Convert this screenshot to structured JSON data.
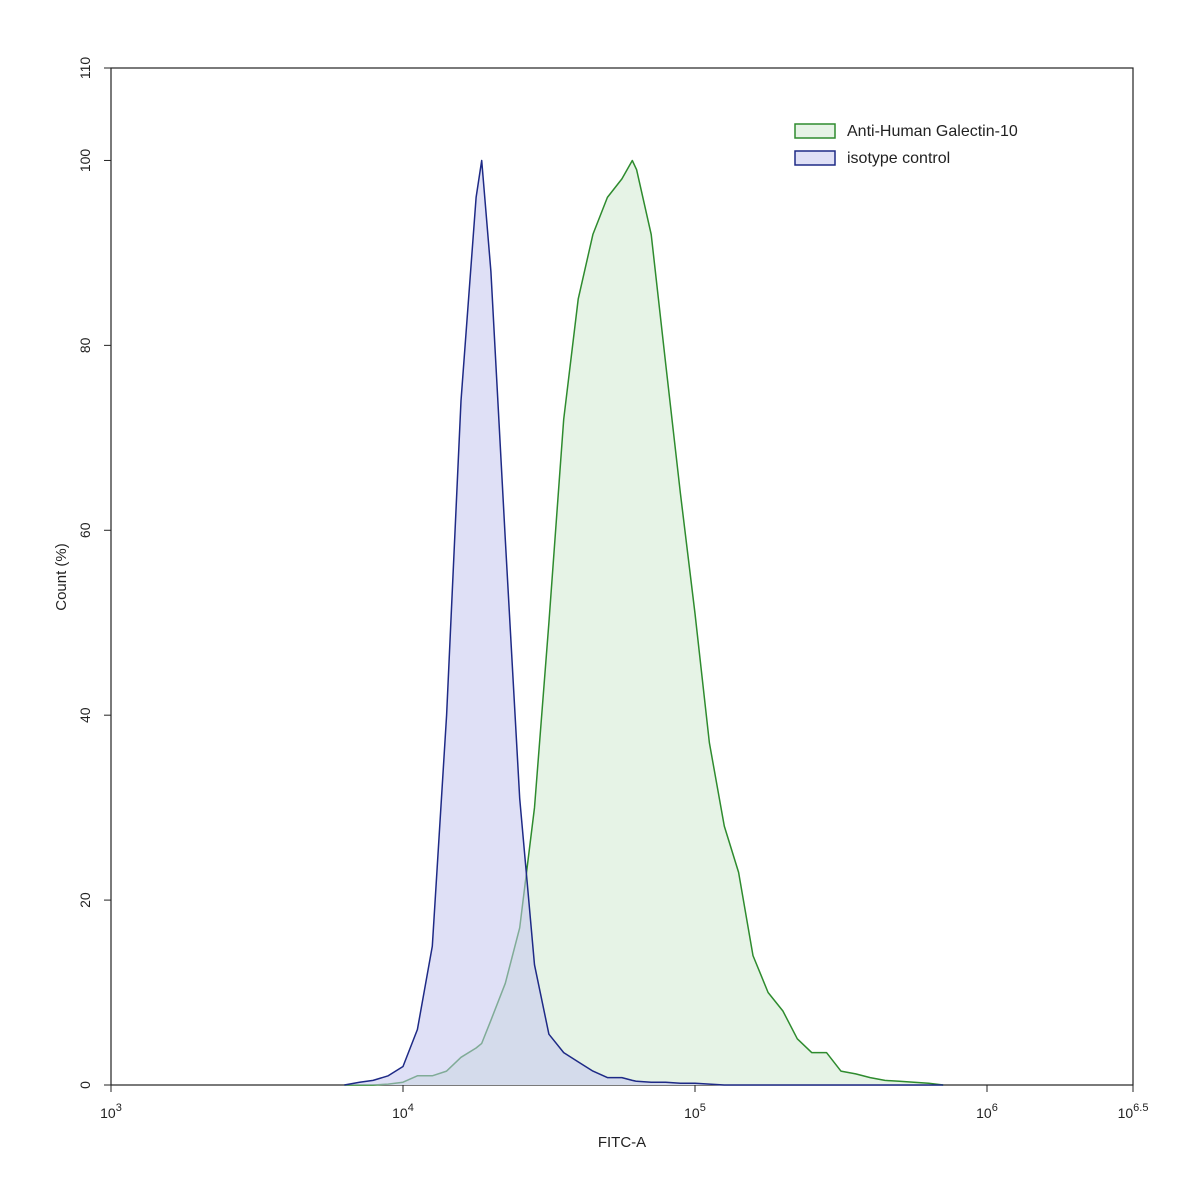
{
  "chart_data": {
    "type": "area",
    "x_label": "FITC-A",
    "y_label": "Count (%)",
    "x_scale": "log",
    "legend": "upper right",
    "xlim": [
      1000,
      3162278
    ],
    "ylim": [
      0,
      110
    ],
    "xticks": [
      {
        "value": 1000,
        "label": "10",
        "exponent": "3"
      },
      {
        "value": 10000,
        "label": "10",
        "exponent": "4"
      },
      {
        "value": 100000,
        "label": "10",
        "exponent": "5"
      },
      {
        "value": 1000000,
        "label": "10",
        "exponent": "6"
      },
      {
        "value": 3162278,
        "label": "10",
        "exponent": "6.5"
      }
    ],
    "yticks": [
      0,
      20,
      40,
      60,
      80,
      100,
      110
    ],
    "x": [
      6300,
      7100,
      7900,
      8900,
      10000,
      11200,
      12600,
      14100,
      15800,
      17800,
      18600,
      20000,
      22400,
      25100,
      28200,
      31600,
      35500,
      39800,
      44700,
      50100,
      56200,
      61000,
      63100,
      70800,
      79400,
      89100,
      100000,
      112000,
      126000,
      141000,
      158000,
      178000,
      200000,
      224000,
      251000,
      282000,
      316000,
      355000,
      398000,
      447000,
      501000,
      562000,
      631000,
      708000
    ],
    "series": [
      {
        "name": "Anti-Human Galectin-10",
        "color": "#2e8b2e",
        "fill": "#e6f3e6",
        "values": [
          0,
          0,
          0,
          0.1,
          0.3,
          1,
          1,
          1.5,
          3,
          4,
          4.5,
          7,
          11,
          17,
          30,
          50,
          72,
          85,
          92,
          96,
          98,
          100,
          99,
          92,
          78,
          64,
          51,
          37,
          28,
          23,
          14,
          10,
          8,
          5,
          3.5,
          3.5,
          1.5,
          1.2,
          0.8,
          0.5,
          0.4,
          0.3,
          0.2,
          0
        ]
      },
      {
        "name": "isotype control",
        "color": "#1e2a86",
        "fill": "rgba(196,198,238,0.55)",
        "values": [
          0,
          0.3,
          0.5,
          1,
          2,
          6,
          15,
          40,
          74,
          96,
          100,
          88,
          59,
          31,
          13,
          5.5,
          3.5,
          2.5,
          1.5,
          0.8,
          0.8,
          0.5,
          0.4,
          0.3,
          0.3,
          0.2,
          0.2,
          0.1,
          0,
          0,
          0,
          0,
          0,
          0,
          0,
          0,
          0,
          0,
          0,
          0,
          0,
          0,
          0,
          0
        ]
      }
    ]
  }
}
